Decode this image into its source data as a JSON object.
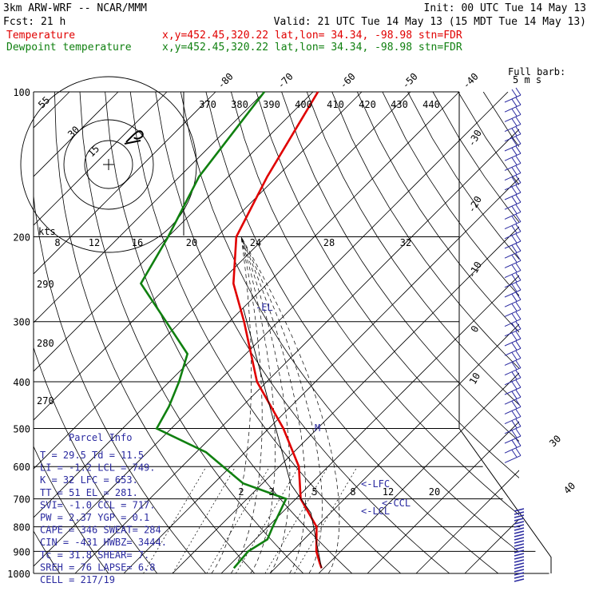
{
  "header": {
    "line1_left": "3km ARW-WRF -- NCAR/MMM",
    "line1_right": "Init: 00 UTC Tue 14 May 13",
    "line2_left": "Fcst:    21 h",
    "line2_right": "Valid: 21 UTC Tue 14 May 13 (15 MDT Tue 14 May 13)",
    "temp_label": "Temperature",
    "temp_info": "x,y=452.45,320.22   lat,lon= 34.34, -98.98   stn=FDR",
    "dew_label": "Dewpoint temperature",
    "dew_info": "x,y=452.45,320.22   lat,lon= 34.34, -98.98   stn=FDR"
  },
  "colors": {
    "temperature": "#e00000",
    "dewpoint": "#108010",
    "annotation": "#2a2aa0"
  },
  "chart_data": {
    "type": "line",
    "diagram": "skew-T log-p",
    "pressure_levels": [
      "100",
      "200",
      "300",
      "400",
      "500",
      "600",
      "700",
      "800",
      "900",
      "1000"
    ],
    "top_temperature_labels": [
      "-80",
      "-70",
      "-60",
      "-50",
      "-40"
    ],
    "right_temperature_labels": [
      "-30",
      "-20",
      "-10",
      "0",
      "10"
    ],
    "right_lower_labels": [
      "30",
      "40"
    ],
    "theta_labels": [
      "370",
      "380",
      "390",
      "400",
      "410",
      "420",
      "430",
      "440"
    ],
    "theta_left_labels": [
      "290",
      "280",
      "270"
    ],
    "hodo_speed_labels": [
      "kts",
      "8",
      "12",
      "16",
      "20",
      "24",
      "28",
      "32"
    ],
    "mixing_ratio_labels": [
      "2",
      "3",
      "5",
      "8",
      "12",
      "20"
    ],
    "barb_legend": [
      "Full barb:",
      "5 m s"
    ],
    "series": [
      {
        "name": "Temperature",
        "points": [
          [
            100,
            -69
          ],
          [
            150,
            -62
          ],
          [
            200,
            -56
          ],
          [
            250,
            -47
          ],
          [
            300,
            -37
          ],
          [
            400,
            -22
          ],
          [
            500,
            -7
          ],
          [
            600,
            4
          ],
          [
            700,
            11
          ],
          [
            800,
            20
          ],
          [
            900,
            25
          ],
          [
            950,
            28
          ],
          [
            975,
            29.5
          ]
        ]
      },
      {
        "name": "Dewpoint temperature",
        "points": [
          [
            100,
            -80
          ],
          [
            150,
            -76
          ],
          [
            200,
            -70
          ],
          [
            250,
            -66
          ],
          [
            300,
            -53
          ],
          [
            350,
            -42
          ],
          [
            400,
            -38
          ],
          [
            450,
            -35
          ],
          [
            500,
            -33
          ],
          [
            560,
            -18
          ],
          [
            650,
            -4
          ],
          [
            700,
            8
          ],
          [
            800,
            11
          ],
          [
            850,
            12.5
          ],
          [
            900,
            11
          ],
          [
            975,
            11.5
          ]
        ]
      }
    ],
    "annotations": [
      "-EL",
      "M",
      "<-LFC",
      "<-CCL",
      "<-LCL"
    ],
    "parcel_info": {
      "title": "Parcel Info",
      "rows": [
        "T  =    29.5  Td  =  11.5",
        "LI =    -1.2  LCL =  749.",
        "K  =     32   LFC =  653.",
        "TT =     51   EL  =  281.",
        "SVI=    -1.0  CCL =  717.",
        "PW =    2.37  YGP =    0.1",
        "CAPE =   346  SWEAT=  284",
        "CIN =   -431  HWBZ= 3444.",
        "Tc =    31.8  SHEAR=   7.",
        "SREH =    76  LAPSE=  6.8",
        "CELL = 217/19"
      ]
    }
  }
}
